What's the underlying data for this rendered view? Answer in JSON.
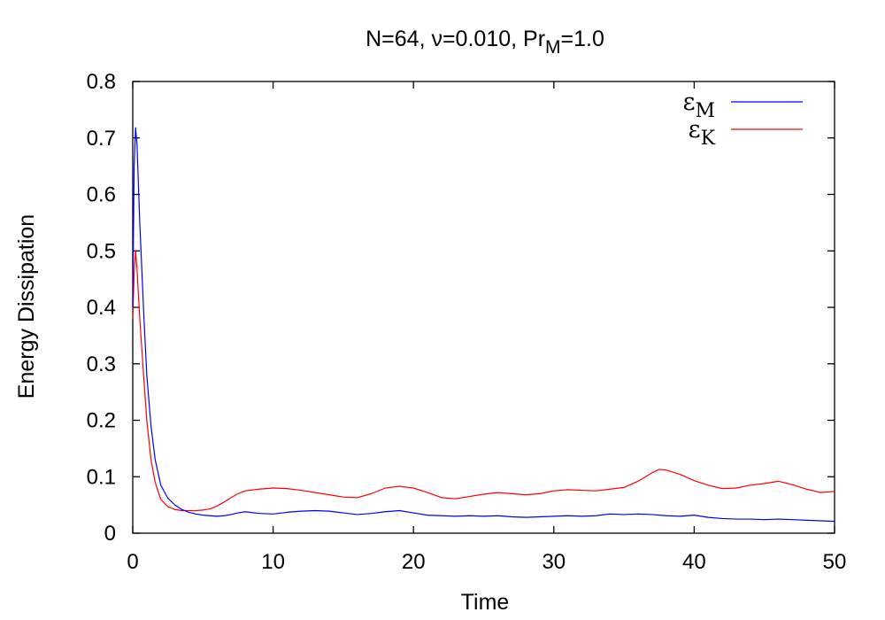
{
  "chart_data": {
    "type": "line",
    "title": "N=64, ν=0.010, Pr_M=1.0",
    "title_parts": {
      "prefix": "N=64, ν=0.010, Pr",
      "subscript": "M",
      "suffix": "=1.0"
    },
    "xlabel": "Time",
    "ylabel": "Energy Dissipation",
    "xlim": [
      0,
      50
    ],
    "ylim": [
      0,
      0.8
    ],
    "xticks": [
      0,
      10,
      20,
      30,
      40,
      50
    ],
    "yticks": [
      0,
      0.1,
      0.2,
      0.3,
      0.4,
      0.5,
      0.6,
      0.7,
      0.8
    ],
    "xtick_labels": [
      "0",
      "10",
      "20",
      "30",
      "40",
      "50"
    ],
    "ytick_labels": [
      "0",
      "0.1",
      "0.2",
      "0.3",
      "0.4",
      "0.5",
      "0.6",
      "0.7",
      "0.8"
    ],
    "grid": false,
    "legend_position": "top-right",
    "series": [
      {
        "name": "ε_M",
        "symbol": "ε",
        "subscript": "M",
        "color": "#0000ff",
        "x": [
          0,
          0.1,
          0.2,
          0.3,
          0.5,
          0.8,
          1.0,
          1.3,
          1.6,
          2.0,
          2.5,
          3.0,
          3.5,
          4.0,
          4.5,
          5.0,
          5.5,
          6.0,
          6.5,
          7.0,
          7.5,
          8.0,
          9.0,
          10.0,
          11.0,
          12.0,
          13.0,
          14.0,
          15.0,
          16.0,
          17.0,
          18.0,
          19.0,
          20.0,
          21.0,
          22.0,
          23.0,
          24.0,
          25.0,
          26.0,
          27.0,
          28.0,
          29.0,
          30.0,
          31.0,
          32.0,
          33.0,
          34.0,
          35.0,
          36.0,
          37.0,
          38.0,
          39.0,
          40.0,
          41.0,
          42.0,
          43.0,
          44.0,
          45.0,
          46.0,
          47.0,
          48.0,
          49.0,
          50.0
        ],
        "y": [
          0.4,
          0.65,
          0.718,
          0.69,
          0.55,
          0.38,
          0.28,
          0.19,
          0.13,
          0.085,
          0.062,
          0.05,
          0.042,
          0.037,
          0.034,
          0.032,
          0.031,
          0.03,
          0.031,
          0.033,
          0.036,
          0.038,
          0.035,
          0.034,
          0.037,
          0.039,
          0.04,
          0.039,
          0.036,
          0.033,
          0.035,
          0.038,
          0.04,
          0.036,
          0.032,
          0.031,
          0.03,
          0.031,
          0.03,
          0.031,
          0.029,
          0.028,
          0.029,
          0.03,
          0.031,
          0.03,
          0.031,
          0.034,
          0.033,
          0.034,
          0.033,
          0.031,
          0.03,
          0.032,
          0.028,
          0.026,
          0.025,
          0.025,
          0.024,
          0.025,
          0.024,
          0.023,
          0.022,
          0.021
        ]
      },
      {
        "name": "ε_K",
        "symbol": "ε",
        "subscript": "K",
        "color": "#ff0000",
        "x": [
          0,
          0.1,
          0.2,
          0.3,
          0.5,
          0.8,
          1.0,
          1.3,
          1.6,
          2.0,
          2.5,
          3.0,
          3.5,
          4.0,
          4.5,
          5.0,
          5.5,
          6.0,
          6.5,
          7.0,
          7.5,
          8.0,
          9.0,
          10.0,
          11.0,
          12.0,
          13.0,
          14.0,
          15.0,
          16.0,
          17.0,
          18.0,
          19.0,
          20.0,
          21.0,
          22.0,
          23.0,
          24.0,
          25.0,
          26.0,
          27.0,
          28.0,
          29.0,
          30.0,
          31.0,
          32.0,
          33.0,
          34.0,
          35.0,
          36.0,
          37.0,
          37.5,
          38.0,
          39.0,
          40.0,
          41.0,
          42.0,
          43.0,
          44.0,
          45.0,
          46.0,
          47.0,
          48.0,
          49.0,
          50.0
        ],
        "y": [
          0.38,
          0.46,
          0.5,
          0.47,
          0.38,
          0.27,
          0.2,
          0.13,
          0.09,
          0.06,
          0.047,
          0.042,
          0.04,
          0.04,
          0.04,
          0.041,
          0.043,
          0.048,
          0.055,
          0.063,
          0.07,
          0.075,
          0.078,
          0.08,
          0.079,
          0.076,
          0.072,
          0.068,
          0.064,
          0.063,
          0.07,
          0.08,
          0.083,
          0.08,
          0.072,
          0.063,
          0.061,
          0.065,
          0.069,
          0.072,
          0.07,
          0.068,
          0.07,
          0.075,
          0.077,
          0.076,
          0.075,
          0.078,
          0.081,
          0.092,
          0.107,
          0.113,
          0.112,
          0.104,
          0.093,
          0.085,
          0.079,
          0.08,
          0.085,
          0.088,
          0.092,
          0.086,
          0.078,
          0.072,
          0.074
        ]
      }
    ]
  }
}
